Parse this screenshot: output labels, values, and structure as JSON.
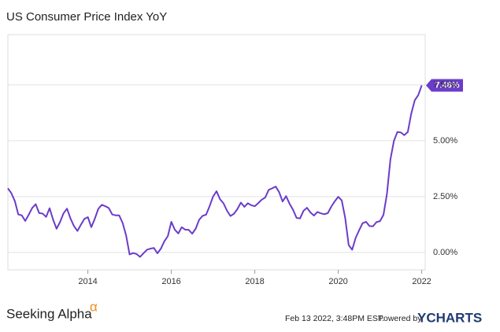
{
  "chart_data": {
    "type": "line",
    "title": "US Consumer Price Index YoY",
    "x": [
      "2012-02",
      "2012-03",
      "2012-04",
      "2012-05",
      "2012-06",
      "2012-07",
      "2012-08",
      "2012-09",
      "2012-10",
      "2012-11",
      "2012-12",
      "2013-01",
      "2013-02",
      "2013-03",
      "2013-04",
      "2013-05",
      "2013-06",
      "2013-07",
      "2013-08",
      "2013-09",
      "2013-10",
      "2013-11",
      "2013-12",
      "2014-01",
      "2014-02",
      "2014-03",
      "2014-04",
      "2014-05",
      "2014-06",
      "2014-07",
      "2014-08",
      "2014-09",
      "2014-10",
      "2014-11",
      "2014-12",
      "2015-01",
      "2015-02",
      "2015-03",
      "2015-04",
      "2015-05",
      "2015-06",
      "2015-07",
      "2015-08",
      "2015-09",
      "2015-10",
      "2015-11",
      "2015-12",
      "2016-01",
      "2016-02",
      "2016-03",
      "2016-04",
      "2016-05",
      "2016-06",
      "2016-07",
      "2016-08",
      "2016-09",
      "2016-10",
      "2016-11",
      "2016-12",
      "2017-01",
      "2017-02",
      "2017-03",
      "2017-04",
      "2017-05",
      "2017-06",
      "2017-07",
      "2017-08",
      "2017-09",
      "2017-10",
      "2017-11",
      "2017-12",
      "2018-01",
      "2018-02",
      "2018-03",
      "2018-04",
      "2018-05",
      "2018-06",
      "2018-07",
      "2018-08",
      "2018-09",
      "2018-10",
      "2018-11",
      "2018-12",
      "2019-01",
      "2019-02",
      "2019-03",
      "2019-04",
      "2019-05",
      "2019-06",
      "2019-07",
      "2019-08",
      "2019-09",
      "2019-10",
      "2019-11",
      "2019-12",
      "2020-01",
      "2020-02",
      "2020-03",
      "2020-04",
      "2020-05",
      "2020-06",
      "2020-07",
      "2020-08",
      "2020-09",
      "2020-10",
      "2020-11",
      "2020-12",
      "2021-01",
      "2021-02",
      "2021-03",
      "2021-04",
      "2021-05",
      "2021-06",
      "2021-07",
      "2021-08",
      "2021-09",
      "2021-10",
      "2021-11",
      "2021-12",
      "2022-01"
    ],
    "series": [
      {
        "name": "US Consumer Price Index YoY",
        "color": "#6b3cc9",
        "values": [
          2.87,
          2.65,
          2.3,
          1.7,
          1.66,
          1.41,
          1.69,
          1.99,
          2.16,
          1.76,
          1.74,
          1.59,
          1.98,
          1.47,
          1.06,
          1.36,
          1.75,
          1.96,
          1.52,
          1.18,
          0.96,
          1.24,
          1.5,
          1.58,
          1.13,
          1.51,
          1.95,
          2.13,
          2.07,
          1.99,
          1.7,
          1.66,
          1.66,
          1.32,
          0.76,
          -0.09,
          -0.03,
          -0.07,
          -0.2,
          -0.04,
          0.12,
          0.17,
          0.2,
          -0.04,
          0.17,
          0.5,
          0.73,
          1.37,
          1.02,
          0.85,
          1.13,
          1.02,
          1.01,
          0.84,
          1.06,
          1.46,
          1.64,
          1.69,
          2.07,
          2.5,
          2.74,
          2.38,
          2.2,
          1.87,
          1.63,
          1.73,
          1.94,
          2.23,
          2.04,
          2.2,
          2.11,
          2.07,
          2.21,
          2.36,
          2.46,
          2.8,
          2.87,
          2.95,
          2.7,
          2.28,
          2.52,
          2.18,
          1.91,
          1.55,
          1.52,
          1.86,
          2.0,
          1.79,
          1.65,
          1.81,
          1.75,
          1.71,
          1.76,
          2.05,
          2.29,
          2.49,
          2.33,
          1.54,
          0.33,
          0.12,
          0.65,
          0.99,
          1.31,
          1.37,
          1.18,
          1.17,
          1.36,
          1.4,
          1.68,
          2.62,
          4.16,
          4.99,
          5.39,
          5.37,
          5.25,
          5.39,
          6.22,
          6.81,
          7.04,
          7.48
        ],
        "value_labels": [
          null,
          null,
          null,
          null,
          null,
          null,
          null,
          null,
          null,
          null,
          null,
          null,
          null,
          null,
          null,
          null,
          null,
          null,
          null,
          null,
          null,
          null,
          null,
          null,
          null,
          null,
          null,
          null,
          null,
          null,
          null,
          null,
          null,
          null,
          null,
          null,
          null,
          null,
          null,
          null,
          null,
          null,
          null,
          null,
          null,
          null,
          null,
          null,
          null,
          null,
          null,
          null,
          null,
          null,
          null,
          null,
          null,
          null,
          null,
          null,
          null,
          null,
          null,
          null,
          null,
          null,
          null,
          null,
          null,
          null,
          null,
          null,
          null,
          null,
          null,
          null,
          null,
          null,
          null,
          null,
          null,
          null,
          null,
          null,
          null,
          null,
          null,
          null,
          null,
          null,
          null,
          null,
          null,
          null,
          null,
          null,
          null,
          null,
          null,
          null,
          null,
          null,
          null,
          null,
          null,
          null,
          null,
          null,
          null,
          null,
          null,
          null,
          null,
          null,
          null,
          null,
          null,
          null,
          null,
          "7.48%"
        ]
      }
    ],
    "xlim": [
      "2012-02",
      "2022-02"
    ],
    "xticks": [
      {
        "value": "2014-01",
        "label": "2014"
      },
      {
        "value": "2016-01",
        "label": "2016"
      },
      {
        "value": "2018-01",
        "label": "2018"
      },
      {
        "value": "2020-01",
        "label": "2020"
      },
      {
        "value": "2022-01",
        "label": "2022"
      }
    ],
    "ylim": [
      -0.78,
      9.75
    ],
    "yticks": [
      {
        "value": 0,
        "label": "0.00%"
      },
      {
        "value": 2.5,
        "label": "2.50%"
      },
      {
        "value": 5,
        "label": "5.00%"
      },
      {
        "value": 7.5,
        "label": "7.50%"
      }
    ],
    "grid": true
  },
  "footer": {
    "brand": "Seeking Alpha",
    "brand_mark": "α",
    "timestamp": "Feb 13 2022, 3:48PM EST.",
    "powered_by": "Powered by",
    "provider": "YCHARTS"
  }
}
